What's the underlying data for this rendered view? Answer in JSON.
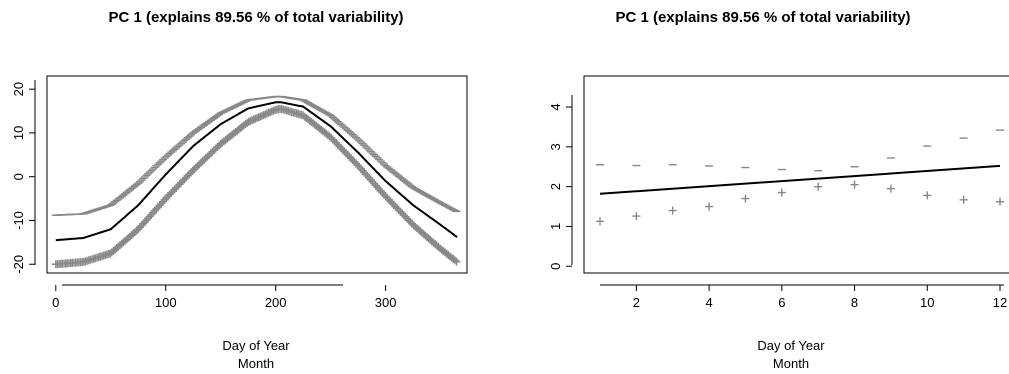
{
  "chart_data": [
    {
      "type": "line",
      "title": "PC 1 (explains 89.56 % of total variability)",
      "xlabel": "Day of Year",
      "xlabel2": "Month",
      "ylabel": "",
      "xlim": [
        -8,
        374
      ],
      "ylim": [
        -22,
        23
      ],
      "xticks": [
        0,
        100,
        200,
        300
      ],
      "yticks": [
        -20,
        -10,
        0,
        10,
        20
      ],
      "colors": {
        "mean": "#000000",
        "perturbation": "#888888"
      },
      "series": [
        {
          "role": "mean",
          "style": "line",
          "x": [
            0,
            25,
            50,
            75,
            100,
            125,
            150,
            175,
            200,
            205,
            225,
            250,
            275,
            300,
            325,
            350,
            365
          ],
          "values": [
            -14.5,
            -14.0,
            -12.0,
            -6.5,
            0.5,
            7.0,
            12.0,
            15.6,
            17.0,
            17.0,
            16.0,
            11.5,
            5.5,
            -1.0,
            -6.5,
            -11.0,
            -13.8
          ]
        },
        {
          "role": "plus",
          "style": "marker",
          "marker": "+",
          "x": [
            0,
            25,
            50,
            75,
            100,
            125,
            150,
            175,
            200,
            205,
            225,
            250,
            275,
            300,
            325,
            350,
            365
          ],
          "values": [
            -20.0,
            -19.5,
            -17.5,
            -12.0,
            -5.0,
            1.5,
            7.5,
            12.5,
            15.3,
            15.5,
            14.0,
            9.0,
            2.5,
            -4.5,
            -11.0,
            -16.5,
            -19.5
          ]
        },
        {
          "role": "minus",
          "style": "marker",
          "marker": "-",
          "x": [
            0,
            25,
            50,
            75,
            100,
            125,
            150,
            175,
            200,
            205,
            225,
            250,
            275,
            300,
            325,
            350,
            365
          ],
          "values": [
            -8.8,
            -8.5,
            -6.5,
            -1.5,
            4.5,
            10.0,
            14.5,
            17.5,
            18.3,
            18.3,
            17.5,
            14.0,
            8.5,
            2.5,
            -2.5,
            -6.0,
            -8.0
          ]
        }
      ]
    },
    {
      "type": "line",
      "title": "PC 1 (explains 89.56 % of total variability)",
      "xlabel": "Day of Year",
      "xlabel2": "Month",
      "ylabel": "",
      "xlim": [
        0.56,
        12.44
      ],
      "ylim": [
        -0.17,
        4.78
      ],
      "xticks": [
        2,
        4,
        6,
        8,
        10,
        12
      ],
      "yticks": [
        0,
        1,
        2,
        3,
        4
      ],
      "colors": {
        "mean": "#000000",
        "perturbation": "#888888"
      },
      "series": [
        {
          "role": "mean",
          "style": "line",
          "x": [
            1,
            12
          ],
          "values": [
            1.82,
            2.52
          ]
        },
        {
          "role": "plus",
          "style": "marker",
          "marker": "+",
          "x": [
            1,
            2,
            3,
            4,
            5,
            6,
            7,
            8,
            9,
            10,
            11,
            12
          ],
          "values": [
            1.13,
            1.26,
            1.4,
            1.5,
            1.7,
            1.85,
            2.0,
            2.05,
            1.95,
            1.78,
            1.67,
            1.62
          ]
        },
        {
          "role": "minus",
          "style": "marker",
          "marker": "-",
          "x": [
            1,
            2,
            3,
            4,
            5,
            6,
            7,
            8,
            9,
            10,
            11,
            12
          ],
          "values": [
            2.55,
            2.53,
            2.55,
            2.52,
            2.48,
            2.43,
            2.4,
            2.5,
            2.72,
            3.02,
            3.22,
            3.42
          ]
        }
      ]
    }
  ]
}
